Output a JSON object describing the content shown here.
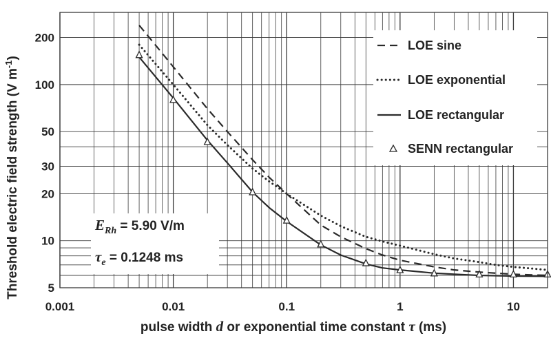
{
  "chart_data": {
    "type": "line",
    "title": "",
    "xlabel_parts": {
      "prefix": "pulse width ",
      "var1": "d",
      "middle": " or exponential time constant ",
      "var2": "τ",
      "suffix": "  (ms)"
    },
    "ylabel": {
      "text": "Threshold electric field strength  (V m",
      "sup": "-1",
      "close": ")"
    },
    "x_scale": "log",
    "y_scale": "log",
    "xlim": [
      0.001,
      20
    ],
    "ylim": [
      5,
      290
    ],
    "x_ticks": [
      {
        "value": 0.001,
        "label": "0.001"
      },
      {
        "value": 0.01,
        "label": "0.01"
      },
      {
        "value": 0.1,
        "label": "0.1"
      },
      {
        "value": 1,
        "label": "1"
      },
      {
        "value": 10,
        "label": "10"
      }
    ],
    "y_ticks": [
      {
        "value": 5,
        "label": "5"
      },
      {
        "value": 10,
        "label": "10"
      },
      {
        "value": 20,
        "label": "20"
      },
      {
        "value": 30,
        "label": "30"
      },
      {
        "value": 50,
        "label": "50"
      },
      {
        "value": 100,
        "label": "100"
      },
      {
        "value": 200,
        "label": "200"
      }
    ],
    "x_grid": [
      0.001,
      0.002,
      0.003,
      0.004,
      0.005,
      0.006,
      0.007,
      0.008,
      0.009,
      0.01,
      0.02,
      0.03,
      0.04,
      0.05,
      0.06,
      0.07,
      0.08,
      0.09,
      0.1,
      0.2,
      0.3,
      0.4,
      0.5,
      0.6,
      0.7,
      0.8,
      0.9,
      1,
      2,
      3,
      4,
      5,
      6,
      7,
      8,
      9,
      10,
      20
    ],
    "y_grid": [
      5,
      6,
      7,
      8,
      9,
      10,
      20,
      30,
      40,
      50,
      100,
      200
    ],
    "grid": true,
    "legend_position": "top-right",
    "series": [
      {
        "name": "LOE sine",
        "style": "dashed",
        "x": [
          0.005,
          0.01,
          0.02,
          0.03,
          0.05,
          0.07,
          0.1,
          0.2,
          0.3,
          0.5,
          0.7,
          1,
          2,
          3,
          5,
          7,
          10,
          20
        ],
        "y": [
          240,
          130,
          70,
          50,
          33,
          25.5,
          20,
          12.6,
          10.6,
          8.9,
          8.1,
          7.5,
          6.8,
          6.5,
          6.3,
          6.2,
          6.1,
          6.0
        ]
      },
      {
        "name": "LOE exponential",
        "style": "dotted",
        "x": [
          0.005,
          0.01,
          0.02,
          0.03,
          0.05,
          0.07,
          0.1,
          0.2,
          0.3,
          0.5,
          0.7,
          1,
          2,
          3,
          5,
          7,
          10,
          20
        ],
        "y": [
          180,
          100,
          55,
          41,
          29,
          24,
          20,
          14.5,
          12.4,
          10.6,
          9.9,
          9.3,
          8.2,
          7.7,
          7.3,
          7.0,
          6.8,
          6.5
        ]
      },
      {
        "name": "LOE rectangular",
        "style": "solid",
        "x": [
          0.005,
          0.01,
          0.02,
          0.03,
          0.05,
          0.07,
          0.1,
          0.2,
          0.3,
          0.5,
          0.7,
          1,
          2,
          3,
          5,
          7,
          10,
          20
        ],
        "y": [
          150,
          82,
          44,
          31.5,
          20.5,
          16.3,
          13.3,
          9.4,
          8.1,
          7.1,
          6.7,
          6.5,
          6.2,
          6.1,
          6.0,
          5.97,
          5.94,
          5.92
        ]
      },
      {
        "name": "SENN rectangular",
        "style": "markers",
        "marker": "triangle",
        "x": [
          0.005,
          0.01,
          0.02,
          0.05,
          0.1,
          0.2,
          0.5,
          1,
          2,
          5,
          10,
          20
        ],
        "y": [
          155,
          80,
          43,
          20.5,
          13.5,
          9.5,
          7.2,
          6.5,
          6.2,
          6.1,
          6.1,
          6.1
        ]
      }
    ]
  },
  "annotations": {
    "erh": {
      "sym": "E",
      "sub": "Rh",
      "text": " = 5.90 V/m"
    },
    "taue": {
      "sym": "τ",
      "sub": "e",
      "text": " = 0.1248 ms"
    }
  },
  "colors": {
    "line": "#2a2a2a",
    "grid": "#3a3a3a",
    "text": "#222222",
    "background": "#ffffff"
  }
}
